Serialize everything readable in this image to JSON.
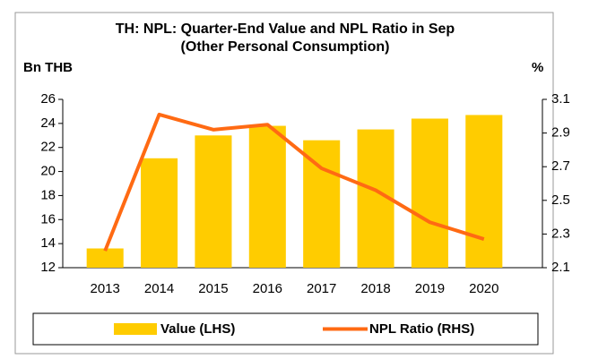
{
  "chart_data": {
    "type": "bar",
    "title": "TH: NPL: Quarter-End Value and NPL Ratio in Sep",
    "subtitle": "(Other Personal Consumption)",
    "y_label": "Bn THB",
    "y2_label": "%",
    "categories": [
      "2013",
      "2014",
      "2015",
      "2016",
      "2017",
      "2018",
      "2019",
      "2020"
    ],
    "series": [
      {
        "name": "Value (LHS)",
        "type": "bar",
        "color": "#ffcc00",
        "values": [
          13.6,
          21.1,
          23.0,
          23.8,
          22.6,
          23.5,
          24.4,
          24.7
        ]
      },
      {
        "name": "NPL Ratio (RHS)",
        "type": "line",
        "axis": "y2",
        "color": "#ff6a13",
        "values": [
          2.2,
          3.01,
          2.92,
          2.95,
          2.69,
          2.56,
          2.37,
          2.27
        ]
      }
    ],
    "ylim": [
      12,
      26
    ],
    "yticks": [
      12,
      14,
      16,
      18,
      20,
      22,
      24,
      26
    ],
    "y2lim": [
      2.1,
      3.1
    ],
    "y2ticks": [
      2.1,
      2.3,
      2.5,
      2.7,
      2.9,
      3.1
    ],
    "legend": "bottom"
  }
}
